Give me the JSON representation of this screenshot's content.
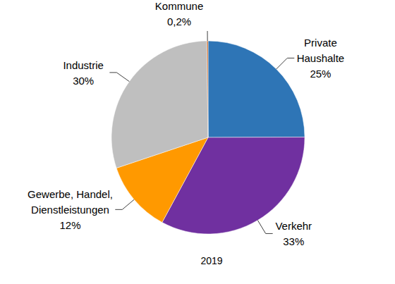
{
  "chart_data": {
    "type": "pie",
    "title": "2019",
    "categories": [
      "Private Haushalte",
      "Verkehr",
      "Gewerbe, Handel, Dienstleistungen",
      "Industrie",
      "Kommune"
    ],
    "values": [
      25,
      33,
      12,
      30,
      0.2
    ],
    "value_labels": [
      "25%",
      "33%",
      "12%",
      "30%",
      "0,2%"
    ],
    "colors": [
      "#2e75b6",
      "#7030a0",
      "#ff9900",
      "#bfbfbf",
      "#c55a11"
    ],
    "data_labels": true
  }
}
